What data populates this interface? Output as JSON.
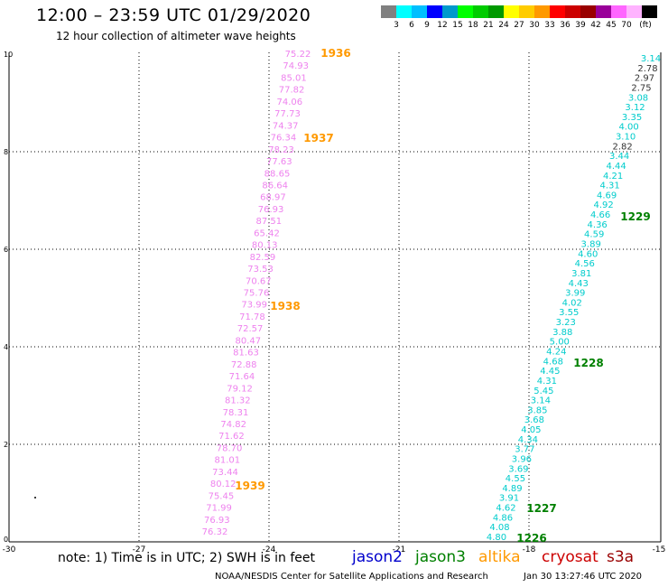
{
  "header": {
    "title": "12:00 – 23:59 UTC 01/29/2020",
    "subtitle": "12 hour collection of altimeter wave heights"
  },
  "colorbar": {
    "colors": [
      "#808080",
      "#00ffff",
      "#00bfff",
      "#0000ff",
      "#0099cc",
      "#00ff00",
      "#00cc00",
      "#009900",
      "#ffff00",
      "#ffcc00",
      "#ff9900",
      "#ff0000",
      "#cc0000",
      "#990000",
      "#990099",
      "#ff66ff",
      "#ffb3ff",
      "#000000"
    ],
    "labels": [
      "3",
      "6",
      "9",
      "12",
      "15",
      "18",
      "21",
      "24",
      "27",
      "30",
      "33",
      "36",
      "39",
      "42",
      "45",
      "70",
      "(ft)"
    ]
  },
  "axes": {
    "x_ticks": [
      "-30",
      "-27",
      "-24",
      "-21",
      "-18",
      "-15"
    ],
    "y_ticks": [
      "0",
      "2",
      "4",
      "6",
      "8",
      "10"
    ]
  },
  "tracks": {
    "pink": {
      "color": "#ee82ee",
      "values": [
        "75.22",
        "74.93",
        "85.01",
        "77.82",
        "74.06",
        "77.73",
        "74.37",
        "76.34",
        "78.23",
        "77.63",
        "88.65",
        "86.64",
        "68.97",
        "76.93",
        "87.51",
        "65.42",
        "80.13",
        "82.59",
        "73.53",
        "70.67",
        "75.76",
        "73.99",
        "71.78",
        "72.57",
        "80.47",
        "81.63",
        "72.88",
        "71.64",
        "79.12",
        "81.32",
        "78.31",
        "74.82",
        "71.62",
        "78.70",
        "81.01",
        "73.44",
        "80.12",
        "75.45",
        "71.99",
        "76.93",
        "76.32"
      ]
    },
    "cyan": {
      "color": "#00cccc",
      "values": [
        "3.14",
        "2.78",
        "2.97",
        "2.75",
        "3.08",
        "3.12",
        "3.35",
        "4.00",
        "3.10",
        "2.82",
        "3.44",
        "4.44",
        "4.21",
        "4.31",
        "4.69",
        "4.92",
        "4.66",
        "4.36",
        "4.59",
        "3.89",
        "4.60",
        "4.56",
        "3.81",
        "4.43",
        "3.99",
        "4.02",
        "3.55",
        "3.23",
        "3.88",
        "5.00",
        "4.24",
        "4.68",
        "4.45",
        "4.31",
        "5.45",
        "3.14",
        "3.85",
        "3.68",
        "4.05",
        "4.34",
        "3.77",
        "3.96",
        "3.69",
        "4.55",
        "4.89",
        "3.91",
        "4.62",
        "4.86",
        "4.08",
        "4.80"
      ],
      "dark_indices": [
        1,
        2,
        3,
        9
      ]
    }
  },
  "time_labels": [
    {
      "text": "1936",
      "color": "#ff9900"
    },
    {
      "text": "1937",
      "color": "#ff9900"
    },
    {
      "text": "1938",
      "color": "#ff9900"
    },
    {
      "text": "1939",
      "color": "#ff9900"
    },
    {
      "text": "1229",
      "color": "#008000"
    },
    {
      "text": "1228",
      "color": "#008000"
    },
    {
      "text": "1227",
      "color": "#008000"
    },
    {
      "text": "1226",
      "color": "#008000"
    }
  ],
  "footer": {
    "note": "note: 1) Time is in UTC; 2) SWH is in feet",
    "satellites": [
      {
        "name": "jason2",
        "color": "#0000cc"
      },
      {
        "name": "jason3",
        "color": "#008000"
      },
      {
        "name": "altika",
        "color": "#ff9900"
      },
      {
        "name": "cryosat",
        "color": "#cc0000"
      },
      {
        "name": "s3a",
        "color": "#990000"
      }
    ],
    "credit": "NOAA/NESDIS Center for Satellite Applications and Research",
    "timestamp": "Jan 30 13:27:46 UTC 2020"
  }
}
